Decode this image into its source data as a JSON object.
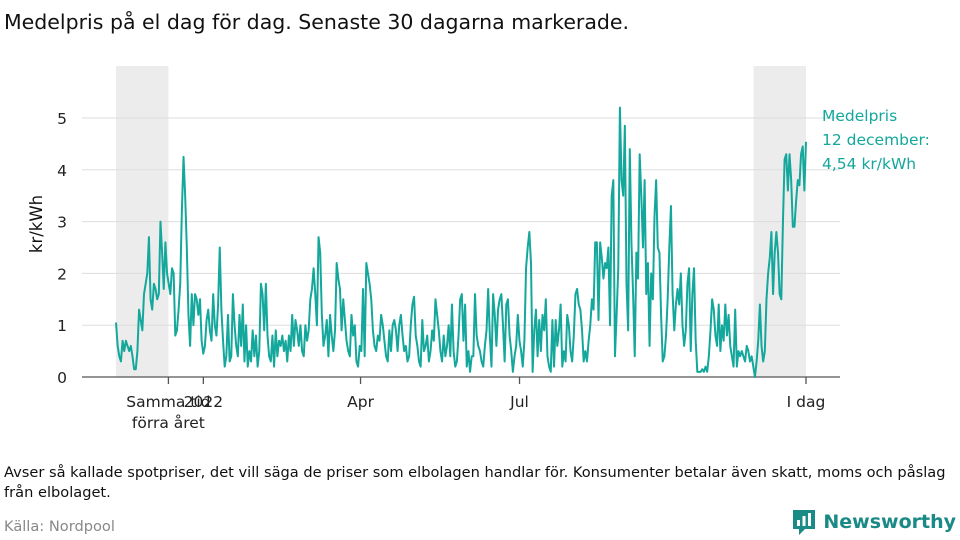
{
  "title": "Medelpris på el dag för dag.  Senaste 30 dagarna markerade.",
  "note": "Avser så kallade spotpriser, det vill säga de priser som elbolagen handlar för. Konsumenter betalar även skatt, moms och påslag från elbolaget.",
  "source": "Källa: Nordpool",
  "brand": "Newsworthy",
  "colors": {
    "line": "#14a79c",
    "highlight": "#ececec",
    "grid": "#dddddd",
    "brand": "#1a8a86"
  },
  "chart_data": {
    "type": "line",
    "title": "Medelpris på el dag för dag.  Senaste 30 dagarna markerade.",
    "ylabel": "kr/kWh",
    "xlabel": "",
    "x_start": "2021-11-12",
    "x_end": "2022-12-12",
    "ylim": [
      0,
      5.5
    ],
    "y_ticks": [
      0,
      1,
      2,
      3,
      4,
      5
    ],
    "grid": "horizontal",
    "x_ticks": [
      {
        "date": "2021-12-12",
        "label": "Samma tid\nförra året"
      },
      {
        "date": "2022-01-01",
        "label": "2022"
      },
      {
        "date": "2022-04-01",
        "label": "Apr"
      },
      {
        "date": "2022-07-01",
        "label": "Jul"
      },
      {
        "date": "2022-12-12",
        "label": "I dag"
      }
    ],
    "highlights": [
      {
        "from": "2021-11-12",
        "to": "2021-12-12",
        "label": "Samma tid förra året"
      },
      {
        "from": "2022-11-12",
        "to": "2022-12-12",
        "label": "Senaste 30 dagarna"
      }
    ],
    "annotation": {
      "lines": [
        "Medelpris",
        "12 december:",
        "4,54 kr/kWh"
      ],
      "date": "2022-12-12",
      "value": 4.54
    },
    "series": [
      {
        "values": [
          1.05,
          0.6,
          0.4,
          0.3,
          0.7,
          0.5,
          0.7,
          0.6,
          0.5,
          0.6,
          0.4,
          0.15,
          0.15,
          0.5,
          1.3,
          1.1,
          0.9,
          1.6,
          1.8,
          2.0,
          2.7,
          1.5,
          1.3,
          1.8,
          1.7,
          1.5,
          1.6,
          3.0,
          2.4,
          1.7,
          2.6,
          2.0,
          1.8,
          1.6,
          2.1,
          2.0,
          0.8,
          0.9,
          1.3,
          1.8,
          3.2,
          4.25,
          3.5,
          2.5,
          1.2,
          0.6,
          1.6,
          1.0,
          1.6,
          1.5,
          1.2,
          1.5,
          0.7,
          0.45,
          0.6,
          1.1,
          1.3,
          0.9,
          0.7,
          1.6,
          1.0,
          0.8,
          1.4,
          2.5,
          1.3,
          0.7,
          0.2,
          0.4,
          1.2,
          0.3,
          0.4,
          1.6,
          1.0,
          0.6,
          0.4,
          1.2,
          0.6,
          1.4,
          0.3,
          1.0,
          0.2,
          0.5,
          0.3,
          0.9,
          0.4,
          0.8,
          0.2,
          0.5,
          1.8,
          1.6,
          0.9,
          1.8,
          0.8,
          0.4,
          0.3,
          0.8,
          0.2,
          0.9,
          0.4,
          0.7,
          0.6,
          0.8,
          0.5,
          0.7,
          0.3,
          0.8,
          0.5,
          1.2,
          0.6,
          1.1,
          0.9,
          0.6,
          1.0,
          0.5,
          0.4,
          1.0,
          0.7,
          0.9,
          1.5,
          1.7,
          2.1,
          1.6,
          1.0,
          2.7,
          2.4,
          1.2,
          0.6,
          0.8,
          1.1,
          0.4,
          1.2,
          0.8,
          0.5,
          0.9,
          2.2,
          1.9,
          1.7,
          0.9,
          1.5,
          1.1,
          0.7,
          0.5,
          0.4,
          1.2,
          0.8,
          1.0,
          0.3,
          0.2,
          0.6,
          0.5,
          1.7,
          0.4,
          2.2,
          2.0,
          1.8,
          1.5,
          0.9,
          0.6,
          0.5,
          0.8,
          0.7,
          1.2,
          1.0,
          0.7,
          0.4,
          0.3,
          0.9,
          0.5,
          1.0,
          1.1,
          0.9,
          0.5,
          1.0,
          1.2,
          0.8,
          0.5,
          0.6,
          0.3,
          0.4,
          1.0,
          1.4,
          1.55,
          0.8,
          0.6,
          0.3,
          0.2,
          1.1,
          0.5,
          0.6,
          0.8,
          0.3,
          0.5,
          0.9,
          0.7,
          1.5,
          1.2,
          0.9,
          0.5,
          0.3,
          0.8,
          0.4,
          0.6,
          1.0,
          0.4,
          1.4,
          0.5,
          0.2,
          0.3,
          0.8,
          1.5,
          1.6,
          0.7,
          1.4,
          0.2,
          0.5,
          0.1,
          0.4,
          0.4,
          1.6,
          0.8,
          0.6,
          0.5,
          0.3,
          0.2,
          0.6,
          0.9,
          1.7,
          0.8,
          0.2,
          1.6,
          1.2,
          0.6,
          1.3,
          1.5,
          1.6,
          1.0,
          0.3,
          1.4,
          1.5,
          0.8,
          0.5,
          0.1,
          0.4,
          0.6,
          1.2,
          0.7,
          0.5,
          0.2,
          0.7,
          2.1,
          2.5,
          2.8,
          2.2,
          0.1,
          0.9,
          1.3,
          0.4,
          1.1,
          0.5,
          1.2,
          0.9,
          1.5,
          0.4,
          0.2,
          0.1,
          1.1,
          0.2,
          1.1,
          0.6,
          0.9,
          1.4,
          0.2,
          0.5,
          0.3,
          1.2,
          1.0,
          0.5,
          0.3,
          0.8,
          1.6,
          1.7,
          1.4,
          1.3,
          0.9,
          0.3,
          0.5,
          0.3,
          0.7,
          1.0,
          1.5,
          1.3,
          2.6,
          2.6,
          1.1,
          2.6,
          2.3,
          1.9,
          2.2,
          2.1,
          2.5,
          1.0,
          3.5,
          3.8,
          0.4,
          1.2,
          2.1,
          5.2,
          3.8,
          3.5,
          4.85,
          1.8,
          0.9,
          4.4,
          2.6,
          1.6,
          0.4,
          2.4,
          1.9,
          4.3,
          3.5,
          2.5,
          3.8,
          1.6,
          2.2,
          0.6,
          2.0,
          1.5,
          3.1,
          3.8,
          2.5,
          2.4,
          1.2,
          0.3,
          0.4,
          0.8,
          1.5,
          2.5,
          3.3,
          1.6,
          0.9,
          1.4,
          1.7,
          1.4,
          2.0,
          1.0,
          0.6,
          0.9,
          1.8,
          2.1,
          0.5,
          1.6,
          2.1,
          0.7,
          0.1,
          0.1,
          0.1,
          0.15,
          0.1,
          0.2,
          0.1,
          0.4,
          0.9,
          1.5,
          1.3,
          0.8,
          0.6,
          1.4,
          0.5,
          1.0,
          0.7,
          1.4,
          0.8,
          1.2,
          0.6,
          0.4,
          0.2,
          1.3,
          0.2,
          0.5,
          0.4,
          0.5,
          0.4,
          0.3,
          0.6,
          0.5,
          0.3,
          0.4,
          0.2,
          0.0,
          0.3,
          0.7,
          1.4,
          0.6,
          0.3,
          0.5,
          1.5,
          2.0,
          2.3,
          2.8,
          1.6,
          2.4,
          2.8,
          2.4,
          1.6,
          1.5,
          3.0,
          4.2,
          4.3,
          3.6,
          4.3,
          3.8,
          2.9,
          2.9,
          3.4,
          3.8,
          3.7,
          4.3,
          4.45,
          3.6,
          4.54
        ]
      }
    ]
  }
}
